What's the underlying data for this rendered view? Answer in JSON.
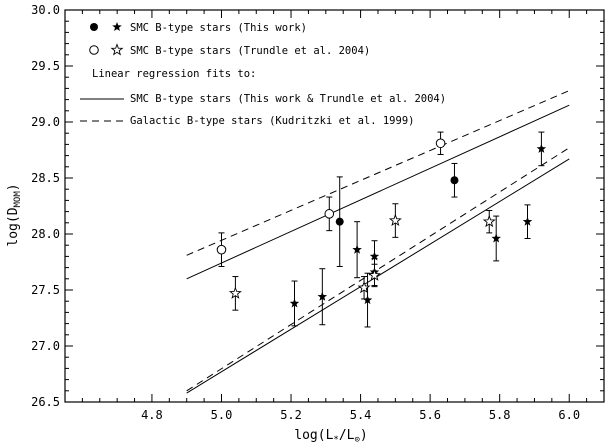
{
  "chart_data": {
    "type": "scatter",
    "xlabel": "log(L*/L⊙)",
    "ylabel": "log(DMOM)",
    "xlim": [
      4.55,
      6.1
    ],
    "ylim": [
      26.5,
      30.0
    ],
    "xticks": [
      4.8,
      5.0,
      5.2,
      5.4,
      5.6,
      5.8,
      6.0
    ],
    "yticks": [
      26.5,
      27.0,
      27.5,
      28.0,
      28.5,
      29.0,
      29.5,
      30.0
    ],
    "xtick_labels": [
      "4.8",
      "5.0",
      "5.2",
      "5.4",
      "5.6",
      "5.8",
      "6.0"
    ],
    "ytick_labels": [
      "26.5",
      "27.0",
      "27.5",
      "28.0",
      "28.5",
      "29.0",
      "29.5",
      "30.0"
    ],
    "grid": false,
    "legend_position": "top-left",
    "legend": {
      "this_work": "SMC B-type stars (This work)",
      "trundle": "SMC B-type stars (Trundle et al. 2004)",
      "regression_heading": "Linear regression fits to:",
      "smc_fit": "SMC B-type stars (This work & Trundle et al. 2004)",
      "galactic_fit": "Galactic B-type stars (Kudritzki et al. 1999)"
    },
    "series": [
      {
        "name": "SMC B-type stars (This work)",
        "marker": "filled-circle",
        "points": [
          {
            "x": 5.34,
            "y": 28.11,
            "err": 0.4
          },
          {
            "x": 5.67,
            "y": 28.48,
            "err": 0.15
          }
        ]
      },
      {
        "name": "SMC B-type stars (This work)",
        "marker": "filled-star",
        "points": [
          {
            "x": 5.21,
            "y": 27.38,
            "err": 0.2
          },
          {
            "x": 5.29,
            "y": 27.44,
            "err": 0.25
          },
          {
            "x": 5.39,
            "y": 27.86,
            "err": 0.25
          },
          {
            "x": 5.42,
            "y": 27.41,
            "err": 0.24
          },
          {
            "x": 5.44,
            "y": 27.8,
            "err": 0.14
          },
          {
            "x": 5.44,
            "y": 27.66,
            "err": 0.12
          },
          {
            "x": 5.79,
            "y": 27.96,
            "err": 0.2
          },
          {
            "x": 5.88,
            "y": 28.11,
            "err": 0.15
          },
          {
            "x": 5.92,
            "y": 28.76,
            "err": 0.15
          }
        ]
      },
      {
        "name": "SMC B-type stars (Trundle et al. 2004)",
        "marker": "open-circle",
        "points": [
          {
            "x": 5.0,
            "y": 27.86,
            "err": 0.15
          },
          {
            "x": 5.31,
            "y": 28.18,
            "err": 0.15
          },
          {
            "x": 5.63,
            "y": 28.81,
            "err": 0.1
          }
        ]
      },
      {
        "name": "SMC B-type stars (Trundle et al. 2004)",
        "marker": "open-star",
        "points": [
          {
            "x": 5.04,
            "y": 27.47,
            "err": 0.15
          },
          {
            "x": 5.41,
            "y": 27.52,
            "err": 0.1
          },
          {
            "x": 5.44,
            "y": 27.63,
            "err": 0.1
          },
          {
            "x": 5.5,
            "y": 28.12,
            "err": 0.15
          },
          {
            "x": 5.77,
            "y": 28.11,
            "err": 0.1
          }
        ]
      }
    ],
    "fits": [
      {
        "name": "SMC B-type stars (This work & Trundle et al. 2004)",
        "style": "solid",
        "segments": [
          [
            [
              4.9,
              27.6
            ],
            [
              6.0,
              29.15
            ]
          ],
          [
            [
              4.9,
              26.58
            ],
            [
              6.0,
              28.67
            ]
          ]
        ]
      },
      {
        "name": "Galactic B-type stars (Kudritzki et al. 1999)",
        "style": "dashed",
        "segments": [
          [
            [
              4.9,
              27.81
            ],
            [
              6.0,
              29.28
            ]
          ],
          [
            [
              4.9,
              26.6
            ],
            [
              6.0,
              28.77
            ]
          ]
        ]
      }
    ]
  }
}
